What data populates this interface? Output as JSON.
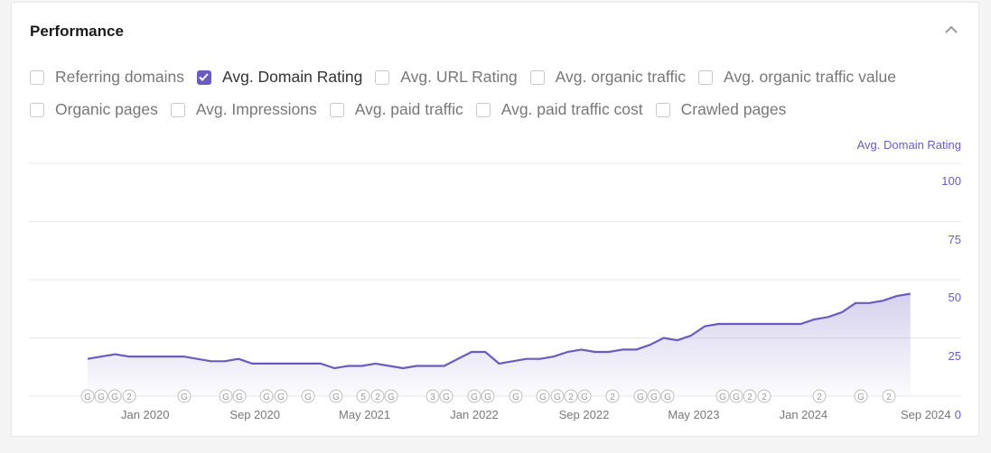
{
  "panel": {
    "title": "Performance"
  },
  "metrics_row1": [
    {
      "label": "Referring domains",
      "checked": false
    },
    {
      "label": "Avg. Domain Rating",
      "checked": true
    },
    {
      "label": "Avg. URL Rating",
      "checked": false
    },
    {
      "label": "Avg. organic traffic",
      "checked": false
    },
    {
      "label": "Avg. organic traffic value",
      "checked": false
    }
  ],
  "metrics_row2": [
    {
      "label": "Organic pages",
      "checked": false
    },
    {
      "label": "Avg. Impressions",
      "checked": false
    },
    {
      "label": "Avg. paid traffic",
      "checked": false
    },
    {
      "label": "Avg. paid traffic cost",
      "checked": false
    },
    {
      "label": "Crawled pages",
      "checked": false
    }
  ],
  "colors": {
    "accent": "#6b5bbf",
    "grid": "#e8e8e8"
  },
  "chart_data": {
    "type": "area",
    "title": "",
    "legend": "Avg. Domain Rating",
    "y_ticks": [
      "100",
      "75",
      "50",
      "25",
      "0"
    ],
    "ylim": [
      0,
      100
    ],
    "x_labels": [
      "Jan 2020",
      "Sep 2020",
      "May 2021",
      "Jan 2022",
      "Sep 2022",
      "May 2023",
      "Jan 2024",
      "Sep 2024"
    ],
    "x_start": "2019-09-01",
    "series": [
      {
        "name": "Avg. Domain Rating",
        "points": [
          [
            "2019-09",
            16
          ],
          [
            "2019-10",
            17
          ],
          [
            "2019-11",
            18
          ],
          [
            "2019-12",
            17
          ],
          [
            "2020-01",
            17
          ],
          [
            "2020-02",
            17
          ],
          [
            "2020-03",
            17
          ],
          [
            "2020-04",
            17
          ],
          [
            "2020-05",
            16
          ],
          [
            "2020-06",
            15
          ],
          [
            "2020-07",
            15
          ],
          [
            "2020-08",
            16
          ],
          [
            "2020-09",
            14
          ],
          [
            "2020-10",
            14
          ],
          [
            "2020-11",
            14
          ],
          [
            "2020-12",
            14
          ],
          [
            "2021-01",
            14
          ],
          [
            "2021-02",
            14
          ],
          [
            "2021-03",
            12
          ],
          [
            "2021-04",
            13
          ],
          [
            "2021-05",
            13
          ],
          [
            "2021-06",
            14
          ],
          [
            "2021-07",
            13
          ],
          [
            "2021-08",
            12
          ],
          [
            "2021-09",
            13
          ],
          [
            "2021-10",
            13
          ],
          [
            "2021-11",
            13
          ],
          [
            "2021-12",
            16
          ],
          [
            "2022-01",
            19
          ],
          [
            "2022-02",
            19
          ],
          [
            "2022-03",
            14
          ],
          [
            "2022-04",
            15
          ],
          [
            "2022-05",
            16
          ],
          [
            "2022-06",
            16
          ],
          [
            "2022-07",
            17
          ],
          [
            "2022-08",
            19
          ],
          [
            "2022-09",
            20
          ],
          [
            "2022-10",
            19
          ],
          [
            "2022-11",
            19
          ],
          [
            "2022-12",
            20
          ],
          [
            "2023-01",
            20
          ],
          [
            "2023-02",
            22
          ],
          [
            "2023-03",
            25
          ],
          [
            "2023-04",
            24
          ],
          [
            "2023-05",
            26
          ],
          [
            "2023-06",
            30
          ],
          [
            "2023-07",
            31
          ],
          [
            "2023-08",
            31
          ],
          [
            "2023-09",
            31
          ],
          [
            "2023-10",
            31
          ],
          [
            "2023-11",
            31
          ],
          [
            "2023-12",
            31
          ],
          [
            "2024-01",
            31
          ],
          [
            "2024-02",
            33
          ],
          [
            "2024-03",
            34
          ],
          [
            "2024-04",
            36
          ],
          [
            "2024-05",
            40
          ],
          [
            "2024-06",
            40
          ],
          [
            "2024-07",
            41
          ],
          [
            "2024-08",
            43
          ],
          [
            "2024-09",
            44
          ]
        ]
      }
    ],
    "annotations": [
      "G",
      "G",
      "G",
      "2",
      "G",
      "G",
      "G",
      "G",
      "G",
      "G",
      "G",
      "5",
      "2",
      "G",
      "3",
      "G",
      "G",
      "G",
      "G",
      "G",
      "G",
      "2",
      "G",
      "2",
      "G",
      "G",
      "G",
      "G",
      "G",
      "2",
      "2",
      "2",
      "G",
      "2"
    ]
  }
}
